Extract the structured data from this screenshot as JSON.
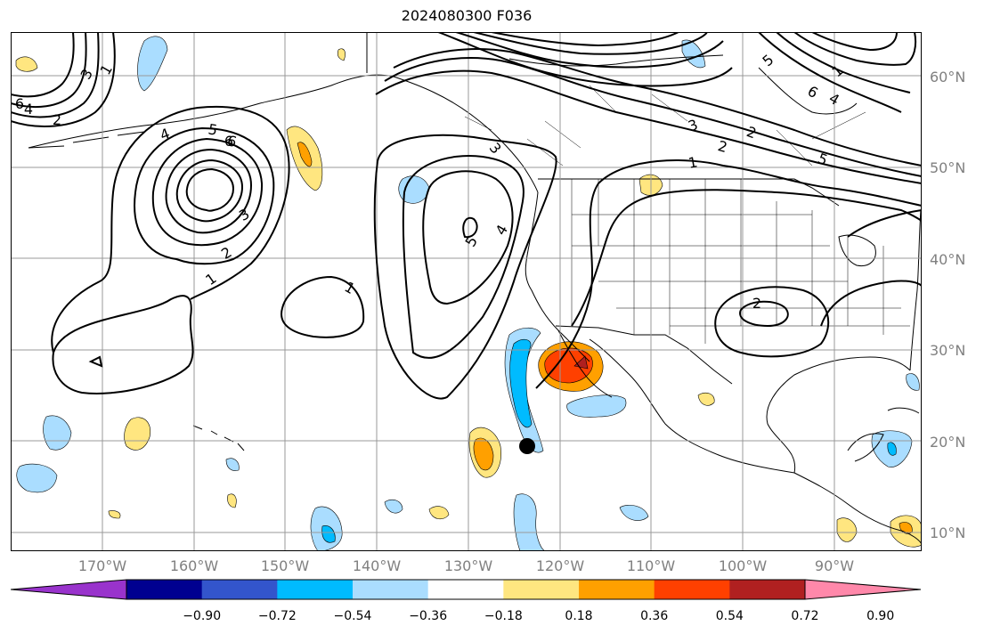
{
  "title": "2024080300 F036",
  "lat_labels": [
    "60°N",
    "50°N",
    "40°N",
    "30°N",
    "20°N",
    "10°N"
  ],
  "lon_labels": [
    "170°W",
    "160°W",
    "150°W",
    "140°W",
    "130°W",
    "120°W",
    "110°W",
    "100°W",
    "90°W"
  ],
  "colorbar": {
    "colors": [
      "#9933cc",
      "#000090",
      "#3355cc",
      "#00bbff",
      "#aaddff",
      "#ffffff",
      "#ffe680",
      "#ffa000",
      "#ff4000",
      "#b02020",
      "#ff88aa"
    ],
    "tick_labels": [
      "−0.90",
      "−0.72",
      "−0.54",
      "−0.36",
      "−0.18",
      "0.18",
      "0.36",
      "0.54",
      "0.72",
      "0.90"
    ]
  },
  "contour_labels": [
    "1",
    "2",
    "3",
    "4",
    "5",
    "6",
    "1",
    "2",
    "3",
    "4",
    "5",
    "6",
    "1",
    "1",
    "2",
    "3",
    "4",
    "5",
    "6",
    "1",
    "2",
    "2",
    "3",
    "5",
    "6",
    "4"
  ],
  "marker": {
    "name": "storm-center",
    "lat": 19.5,
    "lon": -122.5
  }
}
